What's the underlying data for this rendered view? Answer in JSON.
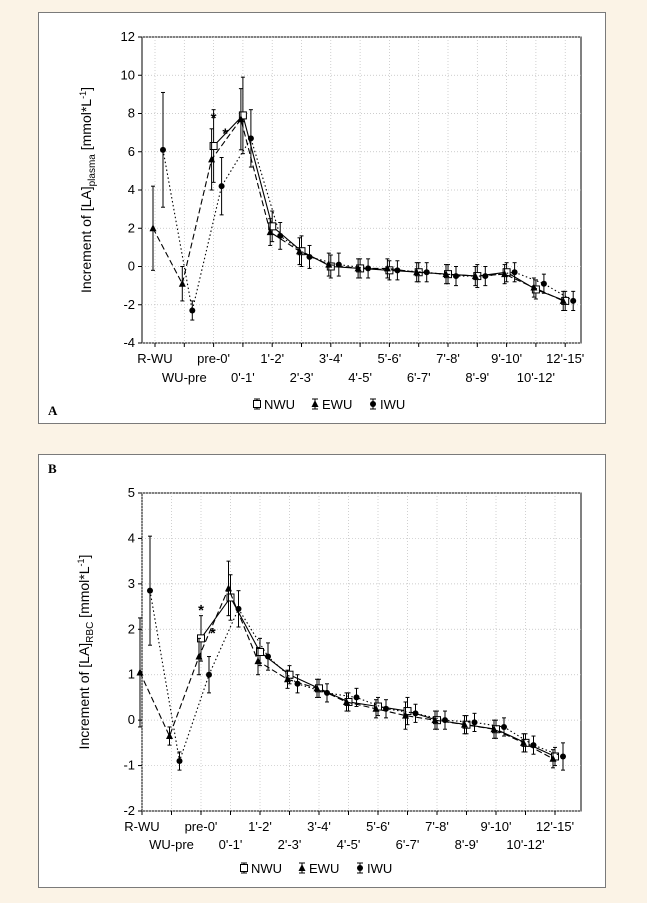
{
  "chart_data": [
    {
      "type": "line",
      "panel_label": "A",
      "ylabel_main": "Increment of [LA]",
      "ylabel_sub": "plasma",
      "ylabel_unit_pre": " [mmol*L",
      "ylabel_unit_sup": "-1",
      "ylabel_unit_post": "]",
      "ylim": [
        -4,
        12
      ],
      "yticks": [
        -4,
        -2,
        0,
        2,
        4,
        6,
        8,
        10,
        12
      ],
      "categories": [
        "R-WU",
        "WU-pre",
        "pre-0'",
        "0'-1'",
        "1'-2'",
        "2'-3'",
        "3'-4'",
        "4'-5'",
        "5'-6'",
        "6'-7'",
        "7'-8'",
        "8'-9'",
        "9'-10'",
        "10'-12'",
        "12'-15'"
      ],
      "grid": true,
      "legend": {
        "placement": "bottom",
        "entries": [
          {
            "label": "NWU",
            "marker": "open-square",
            "line": "solid"
          },
          {
            "label": "EWU",
            "marker": "triangle",
            "line": "dashed"
          },
          {
            "label": "IWU",
            "marker": "filled-circle",
            "line": "dotted"
          }
        ]
      },
      "annotations": [
        {
          "text": "*",
          "x": 2,
          "y": 7.7
        },
        {
          "text": "*",
          "x": 2.4,
          "y": 6.9
        }
      ],
      "series": [
        {
          "name": "NWU",
          "x": [
            2,
            3,
            4,
            5,
            6,
            7,
            8,
            9,
            10,
            11,
            12,
            13,
            14
          ],
          "values": [
            6.3,
            7.9,
            2.1,
            0.8,
            0.0,
            -0.1,
            -0.2,
            -0.3,
            -0.4,
            -0.5,
            -0.3,
            -1.2,
            -1.8
          ],
          "err": [
            1.9,
            2.0,
            0.8,
            0.8,
            0.6,
            0.5,
            0.5,
            0.5,
            0.5,
            0.6,
            0.5,
            0.5,
            0.5
          ]
        },
        {
          "name": "EWU",
          "x": [
            0,
            1,
            2,
            3,
            4,
            5,
            6,
            7,
            8,
            9,
            10,
            11,
            12,
            13,
            14
          ],
          "values": [
            2.0,
            -0.9,
            5.6,
            7.7,
            1.8,
            0.8,
            0.1,
            -0.1,
            -0.1,
            -0.3,
            -0.4,
            -0.5,
            -0.4,
            -1.1,
            -1.8
          ],
          "err": [
            2.2,
            0.9,
            1.6,
            1.6,
            0.7,
            0.7,
            0.6,
            0.5,
            0.5,
            0.5,
            0.5,
            0.5,
            0.5,
            0.5,
            0.5
          ]
        },
        {
          "name": "IWU",
          "x": [
            0,
            1,
            2,
            3,
            4,
            5,
            6,
            7,
            8,
            9,
            10,
            11,
            12,
            13,
            14
          ],
          "values": [
            6.1,
            -2.3,
            4.2,
            6.7,
            1.6,
            0.5,
            0.1,
            -0.1,
            -0.2,
            -0.3,
            -0.5,
            -0.5,
            -0.3,
            -0.9,
            -1.8
          ],
          "err": [
            3.0,
            0.5,
            1.5,
            1.5,
            0.7,
            0.6,
            0.6,
            0.5,
            0.5,
            0.5,
            0.5,
            0.5,
            0.5,
            0.5,
            0.5
          ]
        }
      ]
    },
    {
      "type": "line",
      "panel_label": "B",
      "ylabel_main": "Increment of [LA]",
      "ylabel_sub": "RBC",
      "ylabel_unit_pre": " [mmol*L",
      "ylabel_unit_sup": "-1",
      "ylabel_unit_post": "]",
      "ylim": [
        -2,
        5
      ],
      "yticks": [
        -2,
        -1,
        0,
        1,
        2,
        3,
        4,
        5
      ],
      "categories": [
        "R-WU",
        "WU-pre",
        "pre-0'",
        "0'-1'",
        "1'-2'",
        "2'-3'",
        "3'-4'",
        "4'-5'",
        "5'-6'",
        "6'-7'",
        "7'-8'",
        "8'-9'",
        "9'-10'",
        "10'-12'",
        "12'-15'"
      ],
      "grid": true,
      "legend": {
        "placement": "bottom",
        "entries": [
          {
            "label": "NWU",
            "marker": "open-square",
            "line": "solid"
          },
          {
            "label": "EWU",
            "marker": "triangle",
            "line": "dashed"
          },
          {
            "label": "IWU",
            "marker": "filled-circle",
            "line": "dotted"
          }
        ]
      },
      "annotations": [
        {
          "text": "*",
          "x": 2,
          "y": 2.4
        },
        {
          "text": "*",
          "x": 2.4,
          "y": 1.9
        }
      ],
      "series": [
        {
          "name": "NWU",
          "x": [
            2,
            3,
            4,
            5,
            6,
            7,
            8,
            9,
            10,
            11,
            12,
            13,
            14
          ],
          "values": [
            1.8,
            2.7,
            1.5,
            1.0,
            0.7,
            0.4,
            0.3,
            0.2,
            0.0,
            -0.1,
            -0.2,
            -0.5,
            -0.8
          ],
          "err": [
            0.5,
            0.5,
            0.3,
            0.2,
            0.2,
            0.2,
            0.2,
            0.3,
            0.2,
            0.2,
            0.2,
            0.2,
            0.2
          ]
        },
        {
          "name": "EWU",
          "x": [
            0,
            1,
            2,
            3,
            4,
            5,
            6,
            7,
            8,
            9,
            10,
            11,
            12,
            13,
            14
          ],
          "values": [
            1.05,
            -0.35,
            1.4,
            2.9,
            1.3,
            0.9,
            0.7,
            0.4,
            0.25,
            0.1,
            0.0,
            -0.1,
            -0.2,
            -0.5,
            -0.85
          ],
          "err": [
            1.2,
            0.2,
            0.4,
            0.6,
            0.3,
            0.2,
            0.2,
            0.2,
            0.2,
            0.3,
            0.2,
            0.2,
            0.2,
            0.2,
            0.2
          ]
        },
        {
          "name": "IWU",
          "x": [
            0,
            1,
            2,
            3,
            4,
            5,
            6,
            7,
            8,
            9,
            10,
            11,
            12,
            13,
            14
          ],
          "values": [
            2.85,
            -0.9,
            1.0,
            2.45,
            1.4,
            0.8,
            0.6,
            0.5,
            0.25,
            0.15,
            0.0,
            -0.05,
            -0.15,
            -0.55,
            -0.8
          ],
          "err": [
            1.2,
            0.2,
            0.4,
            0.4,
            0.3,
            0.2,
            0.2,
            0.2,
            0.2,
            0.2,
            0.2,
            0.2,
            0.2,
            0.2,
            0.3
          ]
        }
      ]
    }
  ]
}
